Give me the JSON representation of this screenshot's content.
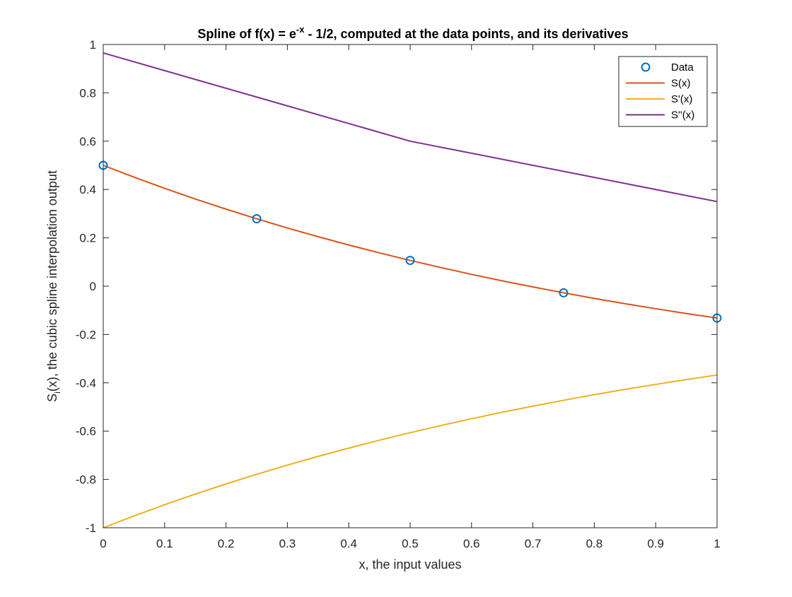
{
  "chart_data": {
    "type": "line",
    "title": {
      "part1": "Spline of f(x) = e",
      "superscript": "-x",
      "part2": " - 1/2, computed at the data points, and its derivatives"
    },
    "xlabel": "x, the input values",
    "ylabel": {
      "part1": "S",
      "subscript": "i",
      "part2": "(x), the cubic spline interpolation output"
    },
    "xlim": [
      0,
      1
    ],
    "ylim": [
      -1,
      1
    ],
    "xticks": [
      0,
      0.1,
      0.2,
      0.3,
      0.4,
      0.5,
      0.6,
      0.7,
      0.8,
      0.9,
      1
    ],
    "xtick_labels": [
      "0",
      "0.1",
      "0.2",
      "0.3",
      "0.4",
      "0.5",
      "0.6",
      "0.7",
      "0.8",
      "0.9",
      "1"
    ],
    "yticks": [
      -1,
      -0.8,
      -0.6,
      -0.4,
      -0.2,
      0,
      0.2,
      0.4,
      0.6,
      0.8,
      1
    ],
    "ytick_labels": [
      "-1",
      "-0.8",
      "-0.6",
      "-0.4",
      "-0.2",
      "0",
      "0.2",
      "0.4",
      "0.6",
      "0.8",
      "1"
    ],
    "grid": false,
    "legend_position": "top-right",
    "series": [
      {
        "name": "Data",
        "kind": "markers",
        "color": "#0072BD",
        "x": [
          0,
          0.25,
          0.5,
          0.75,
          1
        ],
        "y": [
          0.5,
          0.2788,
          0.1065,
          -0.0276,
          -0.1321
        ]
      },
      {
        "name": "S(x)",
        "kind": "line",
        "color": "#D95319",
        "x": [
          0,
          0.05,
          0.1,
          0.15,
          0.2,
          0.25,
          0.3,
          0.35,
          0.4,
          0.45,
          0.5,
          0.55,
          0.6,
          0.65,
          0.7,
          0.75,
          0.8,
          0.85,
          0.9,
          0.95,
          1
        ],
        "y": [
          0.5,
          0.4512,
          0.4048,
          0.3607,
          0.3187,
          0.2788,
          0.2408,
          0.2047,
          0.1703,
          0.1376,
          0.1065,
          0.0769,
          0.0488,
          0.022,
          -0.0034,
          -0.0276,
          -0.0507,
          -0.0726,
          -0.0934,
          -0.1133,
          -0.1321
        ]
      },
      {
        "name": "S'(x)",
        "kind": "line",
        "color": "#EDB120",
        "x": [
          0,
          0.05,
          0.1,
          0.15,
          0.2,
          0.25,
          0.3,
          0.35,
          0.4,
          0.45,
          0.5,
          0.55,
          0.6,
          0.65,
          0.7,
          0.75,
          0.8,
          0.85,
          0.9,
          0.95,
          1
        ],
        "y": [
          -1.0,
          -0.9512,
          -0.9048,
          -0.8607,
          -0.8187,
          -0.7788,
          -0.7408,
          -0.7047,
          -0.6703,
          -0.6376,
          -0.6065,
          -0.5769,
          -0.5488,
          -0.522,
          -0.4966,
          -0.4724,
          -0.4493,
          -0.4274,
          -0.4066,
          -0.3867,
          -0.3679
        ]
      },
      {
        "name": "S''(x)",
        "kind": "line",
        "color": "#7E2F8E",
        "x": [
          0,
          0.5,
          1
        ],
        "y": [
          0.965,
          0.6,
          0.35
        ]
      }
    ]
  }
}
